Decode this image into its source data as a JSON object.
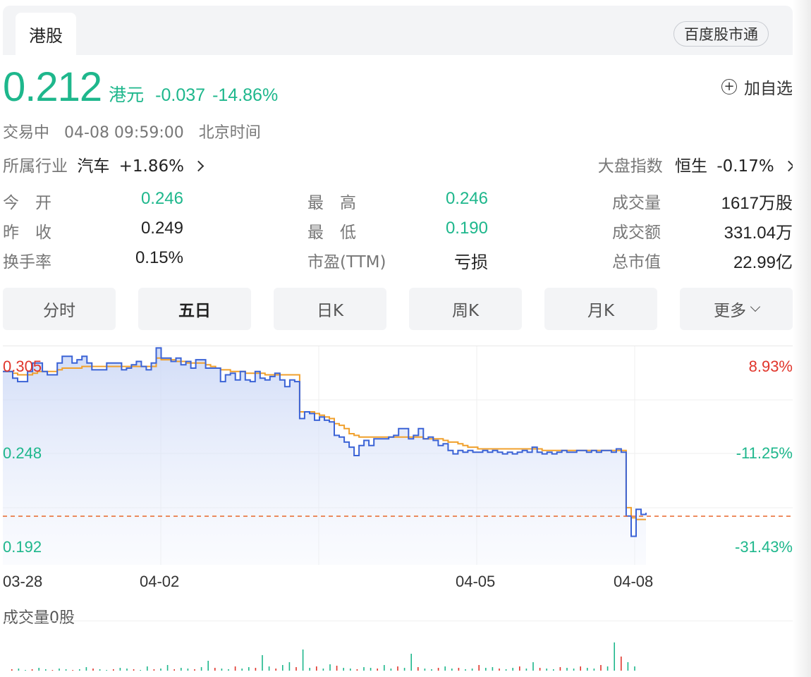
{
  "header": {
    "tab": "港股",
    "pill": "百度股市通"
  },
  "quote": {
    "price": "0.212",
    "unit": "港元",
    "change": "-0.037",
    "change_pct": "-14.86%",
    "add_label": "加自选",
    "add_symbol": "+"
  },
  "status": {
    "state": "交易中",
    "time": "04-08 09:59:00",
    "zone": "北京时间"
  },
  "industry": {
    "label": "所属行业",
    "name": "汽车",
    "change": "+1.86%"
  },
  "index": {
    "label": "大盘指数",
    "name": "恒生",
    "change": "-0.17%"
  },
  "stats": [
    [
      {
        "label": "今　开",
        "value": "0.246",
        "color": "green"
      },
      {
        "label": "最　高",
        "value": "0.246",
        "color": "green"
      },
      {
        "label": "成交量",
        "value": "1617万股",
        "color": "dark"
      }
    ],
    [
      {
        "label": "昨　收",
        "value": "0.249",
        "color": "dark"
      },
      {
        "label": "最　低",
        "value": "0.190",
        "color": "green"
      },
      {
        "label": "成交额",
        "value": "331.04万",
        "color": "dark"
      }
    ],
    [
      {
        "label": "换手率",
        "value": "0.15%",
        "color": "dark"
      },
      {
        "label": "市盈(TTM)",
        "value": "亏损",
        "color": "dark"
      },
      {
        "label": "总市值",
        "value": "22.99亿",
        "color": "dark"
      }
    ]
  ],
  "periods": [
    "分时",
    "五日",
    "日K",
    "周K",
    "月K",
    "更多"
  ],
  "active_period": 1,
  "colors": {
    "up": "#e0352b",
    "down": "#1eb78c",
    "price_line": "#3b63d6",
    "avg_line": "#f0a02c",
    "prev_close": "#e8672a"
  },
  "chart_data": {
    "type": "line",
    "y_left_ticks": [
      "0.305",
      "0.248",
      "0.192"
    ],
    "y_right_ticks": [
      "8.93%",
      "-11.25%",
      "-31.43%"
    ],
    "x_ticks": [
      "03-28",
      "04-02",
      "04-05",
      "04-08"
    ],
    "prev_close": 0.249,
    "ylim": [
      0.181,
      0.311
    ],
    "price_series": [
      0.296,
      0.296,
      0.292,
      0.29,
      0.29,
      0.296,
      0.301,
      0.301,
      0.296,
      0.294,
      0.294,
      0.301,
      0.305,
      0.305,
      0.301,
      0.303,
      0.305,
      0.301,
      0.297,
      0.297,
      0.297,
      0.301,
      0.301,
      0.301,
      0.297,
      0.298,
      0.3,
      0.302,
      0.299,
      0.297,
      0.301,
      0.31,
      0.304,
      0.304,
      0.302,
      0.304,
      0.3,
      0.302,
      0.298,
      0.303,
      0.303,
      0.298,
      0.298,
      0.298,
      0.29,
      0.294,
      0.295,
      0.291,
      0.296,
      0.291,
      0.29,
      0.296,
      0.292,
      0.291,
      0.293,
      0.295,
      0.291,
      0.287,
      0.291,
      0.29,
      0.268,
      0.272,
      0.271,
      0.267,
      0.269,
      0.267,
      0.266,
      0.258,
      0.257,
      0.254,
      0.251,
      0.246,
      0.252,
      0.255,
      0.252,
      0.256,
      0.256,
      0.256,
      0.257,
      0.258,
      0.262,
      0.262,
      0.256,
      0.258,
      0.262,
      0.256,
      0.257,
      0.255,
      0.252,
      0.253,
      0.249,
      0.247,
      0.249,
      0.248,
      0.249,
      0.248,
      0.248,
      0.249,
      0.248,
      0.249,
      0.248,
      0.247,
      0.248,
      0.247,
      0.248,
      0.249,
      0.248,
      0.251,
      0.248,
      0.247,
      0.248,
      0.247,
      0.248,
      0.249,
      0.248,
      0.248,
      0.249,
      0.249,
      0.248,
      0.249,
      0.248,
      0.249,
      0.249,
      0.248,
      0.25,
      0.248,
      0.21,
      0.198,
      0.214,
      0.211,
      0.212
    ],
    "avg_series": [
      0.296,
      0.296,
      0.295,
      0.294,
      0.294,
      0.294,
      0.295,
      0.296,
      0.296,
      0.296,
      0.296,
      0.297,
      0.298,
      0.298,
      0.298,
      0.298,
      0.299,
      0.299,
      0.299,
      0.299,
      0.299,
      0.299,
      0.299,
      0.299,
      0.299,
      0.299,
      0.299,
      0.299,
      0.299,
      0.299,
      0.299,
      0.304,
      0.303,
      0.303,
      0.303,
      0.302,
      0.302,
      0.301,
      0.301,
      0.301,
      0.301,
      0.3,
      0.299,
      0.298,
      0.297,
      0.297,
      0.296,
      0.296,
      0.296,
      0.295,
      0.295,
      0.295,
      0.295,
      0.294,
      0.294,
      0.294,
      0.294,
      0.294,
      0.294,
      0.294,
      0.272,
      0.272,
      0.272,
      0.271,
      0.27,
      0.269,
      0.268,
      0.265,
      0.264,
      0.262,
      0.259,
      0.258,
      0.257,
      0.257,
      0.257,
      0.257,
      0.257,
      0.257,
      0.257,
      0.257,
      0.257,
      0.257,
      0.257,
      0.257,
      0.257,
      0.256,
      0.256,
      0.256,
      0.256,
      0.255,
      0.254,
      0.254,
      0.253,
      0.252,
      0.251,
      0.251,
      0.25,
      0.25,
      0.25,
      0.25,
      0.25,
      0.25,
      0.25,
      0.25,
      0.25,
      0.25,
      0.25,
      0.25,
      0.25,
      0.249,
      0.249,
      0.249,
      0.249,
      0.249,
      0.249,
      0.249,
      0.249,
      0.249,
      0.249,
      0.249,
      0.249,
      0.249,
      0.249,
      0.249,
      0.249,
      0.249,
      0.215,
      0.209,
      0.208,
      0.208,
      0.208
    ]
  },
  "volume": {
    "title": "成交量0股"
  }
}
